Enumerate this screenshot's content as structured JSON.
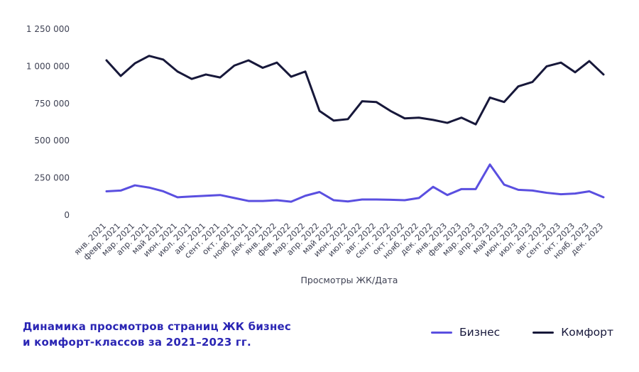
{
  "footer": {
    "title_line1": "Динамика просмотров страниц ЖК бизнес",
    "title_line2": "и комфорт-классов за 2021–2023 гг.",
    "title_color": "#2b26b4"
  },
  "chart_data": {
    "type": "line",
    "title": "Динамика просмотров страниц ЖК бизнес и комфорт-классов за 2021–2023 гг.",
    "xlabel": "Просмотры ЖК/Дата",
    "ylabel": "",
    "ylim": [
      0,
      1250000
    ],
    "y_ticks": [
      0,
      250000,
      500000,
      750000,
      1000000,
      1250000
    ],
    "grid": false,
    "legend_position": "bottom-right",
    "background_color": "#ffffff",
    "tick_label_color": "#3f4254",
    "categories": [
      "янв. 2021",
      "февр. 2021",
      "мар. 2021",
      "апр. 2021",
      "май 2021",
      "июн. 2021",
      "июл. 2021",
      "авг. 2021",
      "сент. 2021",
      "окт. 2021",
      "нояб. 2021",
      "дек. 2021",
      "янв. 2022",
      "фев. 2022",
      "мар. 2022",
      "апр. 2022",
      "май 2022",
      "июн. 2022",
      "июл. 2022",
      "авг. 2022",
      "сент. 2022",
      "окт. 2022",
      "нояб. 2022",
      "дек. 2022",
      "янв. 2023",
      "фев. 2023",
      "мар. 2023",
      "апр. 2023",
      "май 2023",
      "июн. 2023",
      "июл. 2023",
      "авг. 2023",
      "сент. 2023",
      "окт. 2023",
      "нояб. 2023",
      "дек. 2023"
    ],
    "series": [
      {
        "name": "Бизнес",
        "color": "#5a4fe0",
        "values": [
          160000,
          165000,
          200000,
          185000,
          160000,
          120000,
          125000,
          130000,
          135000,
          115000,
          95000,
          95000,
          100000,
          90000,
          130000,
          155000,
          100000,
          92000,
          105000,
          105000,
          103000,
          100000,
          115000,
          190000,
          135000,
          175000,
          175000,
          340000,
          205000,
          170000,
          165000,
          150000,
          140000,
          145000,
          160000,
          120000
        ]
      },
      {
        "name": "Комфорт",
        "color": "#17183a",
        "values": [
          1040000,
          935000,
          1020000,
          1070000,
          1045000,
          965000,
          915000,
          945000,
          925000,
          1005000,
          1040000,
          990000,
          1025000,
          930000,
          965000,
          700000,
          635000,
          645000,
          765000,
          760000,
          700000,
          650000,
          655000,
          640000,
          620000,
          655000,
          610000,
          790000,
          760000,
          865000,
          895000,
          1000000,
          1025000,
          960000,
          1035000,
          945000
        ]
      }
    ]
  }
}
